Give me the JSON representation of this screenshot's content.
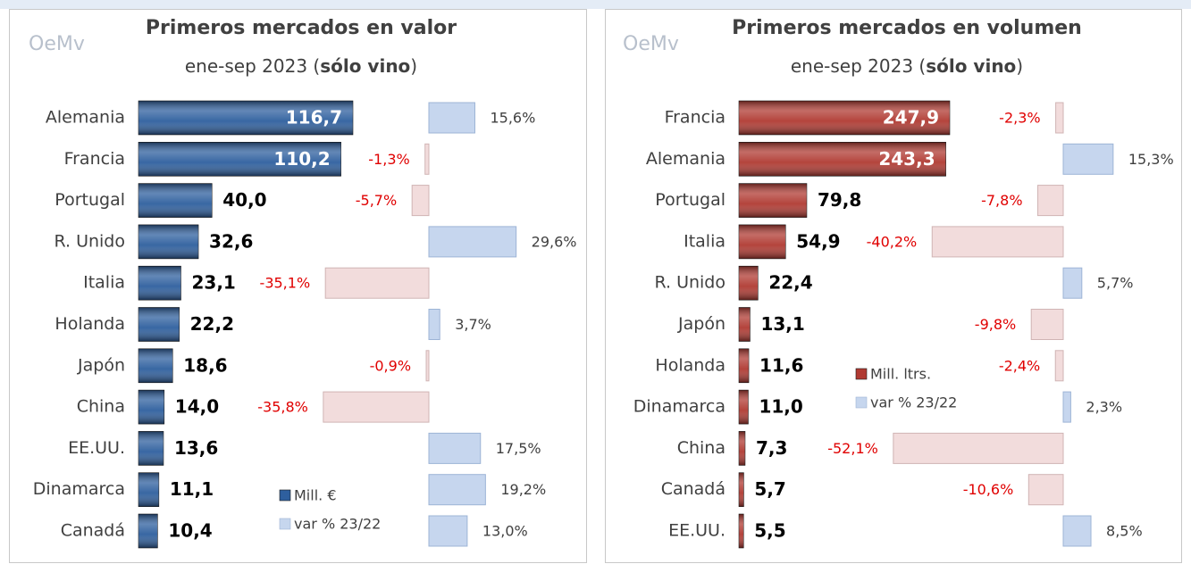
{
  "chart_data": [
    {
      "type": "bar",
      "logo": "OeMv",
      "title": "Primeros mercados en valor",
      "subtitle": [
        "ene-sep 2023 (",
        "sólo vino",
        ")"
      ],
      "categories": [
        "Alemania",
        "Francia",
        "Portugal",
        "R. Unido",
        "Italia",
        "Holanda",
        "Japón",
        "China",
        "EE.UU.",
        "Dinamarca",
        "Canadá"
      ],
      "negative_color": "#f2dcdc",
      "negative_label_color": "#e00000",
      "series": [
        {
          "name": "Mill. €",
          "color": "#2e5f9e",
          "values": [
            116.7,
            110.2,
            40.0,
            32.6,
            23.1,
            22.2,
            18.6,
            14.0,
            13.6,
            11.1,
            10.4
          ],
          "value_labels": [
            "116,7",
            "110,2",
            "40,0",
            "32,6",
            "23,1",
            "22,2",
            "18,6",
            "14,0",
            "13,6",
            "11,1",
            "10,4"
          ]
        },
        {
          "name": "var % 23/22",
          "color": "#c6d6ee",
          "values": [
            15.6,
            -1.3,
            -5.7,
            29.6,
            -35.1,
            3.7,
            -0.9,
            -35.8,
            17.5,
            19.2,
            13.0
          ],
          "value_labels": [
            "15,6%",
            "-1,3%",
            "-5,7%",
            "29,6%",
            "-35,1%",
            "3,7%",
            "-0,9%",
            "-35,8%",
            "17,5%",
            "19,2%",
            "13,0%"
          ]
        }
      ]
    },
    {
      "type": "bar",
      "logo": "OeMv",
      "title": "Primeros mercados en volumen",
      "subtitle": [
        "ene-sep 2023 (",
        "sólo vino",
        ")"
      ],
      "categories": [
        "Francia",
        "Alemania",
        "Portugal",
        "Italia",
        "R. Unido",
        "Japón",
        "Holanda",
        "Dinamarca",
        "China",
        "Canadá",
        "EE.UU."
      ],
      "negative_color": "#f2dcdc",
      "negative_label_color": "#e00000",
      "series": [
        {
          "name": "Mill. ltrs.",
          "color": "#b03a32",
          "values": [
            247.9,
            243.3,
            79.8,
            54.9,
            22.4,
            13.1,
            11.6,
            11.0,
            7.3,
            5.7,
            5.5
          ],
          "value_labels": [
            "247,9",
            "243,3",
            "79,8",
            "54,9",
            "22,4",
            "13,1",
            "11,6",
            "11,0",
            "7,3",
            "5,7",
            "5,5"
          ]
        },
        {
          "name": "var % 23/22",
          "color": "#c6d6ee",
          "values": [
            -2.3,
            15.3,
            -7.8,
            -40.2,
            5.7,
            -9.8,
            -2.4,
            2.3,
            -52.1,
            -10.6,
            8.5
          ],
          "value_labels": [
            "-2,3%",
            "15,3%",
            "-7,8%",
            "-40,2%",
            "5,7%",
            "-9,8%",
            "-2,4%",
            "2,3%",
            "-52,1%",
            "-10,6%",
            "8,5%"
          ]
        }
      ]
    }
  ]
}
